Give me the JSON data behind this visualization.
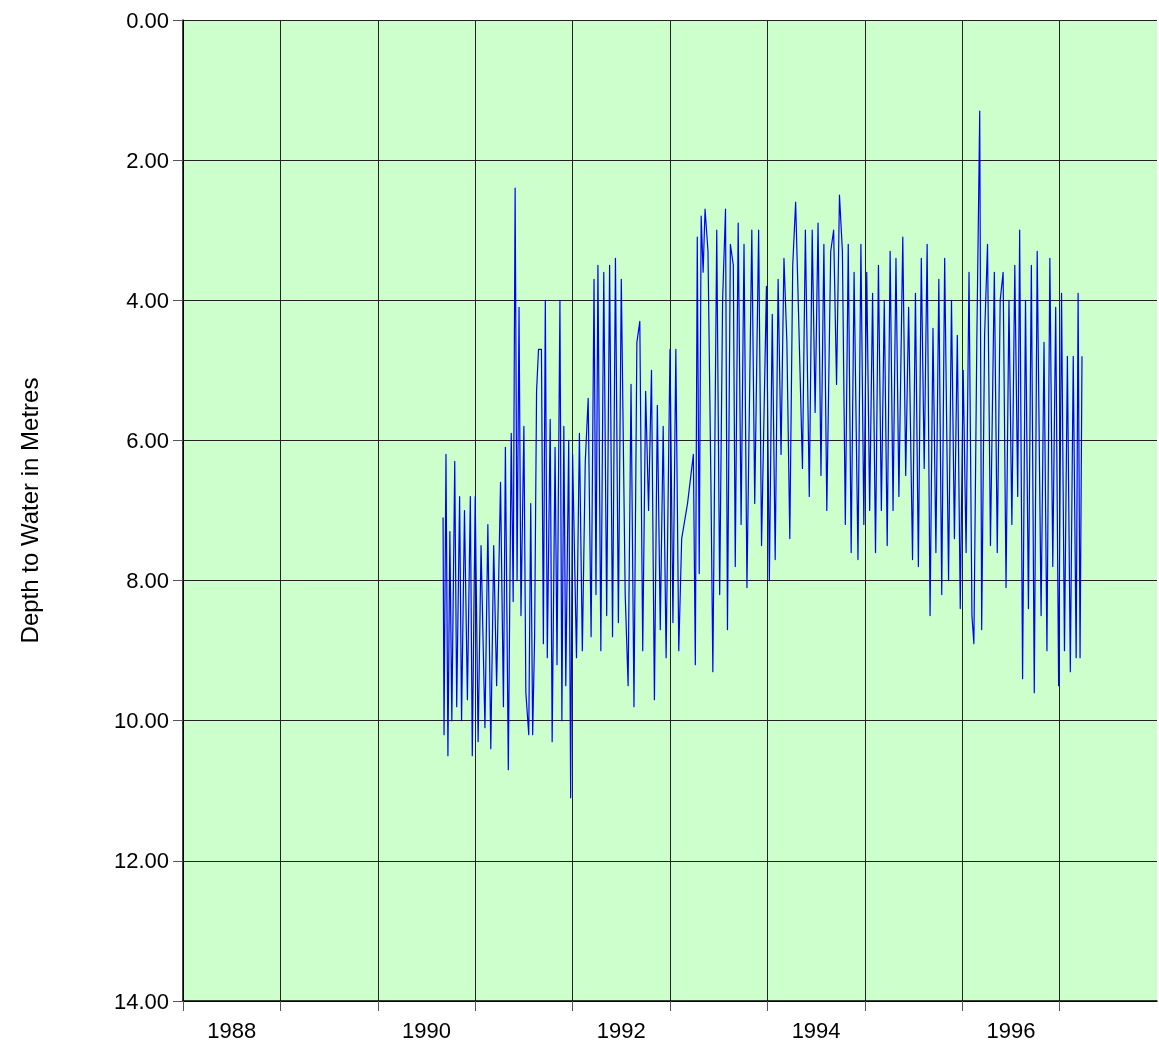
{
  "chart_data": {
    "type": "line",
    "ylabel": "Depth to Water in Metres",
    "xlim": [
      1988,
      1998
    ],
    "ylim": [
      14,
      0
    ],
    "xticks": [
      {
        "value": 1988,
        "label": null
      },
      {
        "value": 1989,
        "label": null
      },
      {
        "value": 1990,
        "label": null
      },
      {
        "value": 1991,
        "label": null
      },
      {
        "value": 1992,
        "label": null
      },
      {
        "value": 1993,
        "label": null
      },
      {
        "value": 1994,
        "label": null
      },
      {
        "value": 1995,
        "label": null
      },
      {
        "value": 1996,
        "label": null
      },
      {
        "value": 1997,
        "label": null
      },
      {
        "value": 1988.5,
        "label": "1988"
      },
      {
        "value": 1990.5,
        "label": "1990"
      },
      {
        "value": 1992.5,
        "label": "1992"
      },
      {
        "value": 1994.5,
        "label": "1994"
      },
      {
        "value": 1996.5,
        "label": "1996"
      }
    ],
    "yticks": [
      {
        "value": 0,
        "label": "0.00"
      },
      {
        "value": 2,
        "label": "2.00"
      },
      {
        "value": 4,
        "label": "4.00"
      },
      {
        "value": 6,
        "label": "6.00"
      },
      {
        "value": 8,
        "label": "8.00"
      },
      {
        "value": 10,
        "label": "10.00"
      },
      {
        "value": 12,
        "label": "12.00"
      },
      {
        "value": 14,
        "label": "14.00"
      }
    ],
    "grid": true,
    "series": [
      {
        "color": "#0000ff",
        "x": [
          1990.67,
          1990.68,
          1990.7,
          1990.72,
          1990.74,
          1990.76,
          1990.79,
          1990.81,
          1990.84,
          1990.86,
          1990.89,
          1990.92,
          1990.95,
          1990.97,
          1991.0,
          1991.03,
          1991.06,
          1991.1,
          1991.13,
          1991.16,
          1991.19,
          1991.22,
          1991.26,
          1991.29,
          1991.31,
          1991.34,
          1991.37,
          1991.39,
          1991.4,
          1991.41,
          1991.43,
          1991.45,
          1991.47,
          1991.5,
          1991.52,
          1991.55,
          1991.57,
          1991.59,
          1991.61,
          1991.63,
          1991.65,
          1991.68,
          1991.7,
          1991.72,
          1991.74,
          1991.77,
          1991.79,
          1991.82,
          1991.84,
          1991.87,
          1991.89,
          1991.91,
          1991.93,
          1991.96,
          1991.98,
          1992.0,
          1992.04,
          1992.07,
          1992.1,
          1992.13,
          1992.16,
          1992.19,
          1992.22,
          1992.24,
          1992.26,
          1992.29,
          1992.32,
          1992.35,
          1992.38,
          1992.41,
          1992.44,
          1992.47,
          1992.5,
          1992.54,
          1992.57,
          1992.6,
          1992.63,
          1992.66,
          1992.69,
          1992.72,
          1992.75,
          1992.78,
          1992.81,
          1992.84,
          1992.87,
          1992.9,
          1992.93,
          1992.96,
          1993.0,
          1993.03,
          1993.06,
          1993.09,
          1993.12,
          1993.18,
          1993.24,
          1993.26,
          1993.28,
          1993.3,
          1993.32,
          1993.34,
          1993.36,
          1993.39,
          1993.42,
          1993.44,
          1993.48,
          1993.51,
          1993.54,
          1993.57,
          1993.59,
          1993.62,
          1993.65,
          1993.67,
          1993.7,
          1993.73,
          1993.76,
          1993.79,
          1993.84,
          1993.87,
          1993.91,
          1993.94,
          1993.99,
          1994.02,
          1994.05,
          1994.08,
          1994.11,
          1994.14,
          1994.17,
          1994.2,
          1994.23,
          1994.26,
          1994.29,
          1994.32,
          1994.36,
          1994.39,
          1994.43,
          1994.46,
          1994.49,
          1994.52,
          1994.55,
          1994.58,
          1994.61,
          1994.65,
          1994.68,
          1994.71,
          1994.74,
          1994.77,
          1994.8,
          1994.83,
          1994.86,
          1994.89,
          1994.93,
          1994.96,
          1994.99,
          1995.02,
          1995.05,
          1995.08,
          1995.11,
          1995.14,
          1995.17,
          1995.2,
          1995.23,
          1995.26,
          1995.29,
          1995.32,
          1995.35,
          1995.39,
          1995.42,
          1995.45,
          1995.49,
          1995.52,
          1995.55,
          1995.58,
          1995.61,
          1995.64,
          1995.67,
          1995.7,
          1995.73,
          1995.76,
          1995.79,
          1995.82,
          1995.86,
          1995.89,
          1995.92,
          1995.95,
          1995.98,
          1996.01,
          1996.04,
          1996.07,
          1996.1,
          1996.12,
          1996.15,
          1996.18,
          1996.2,
          1996.23,
          1996.26,
          1996.29,
          1996.33,
          1996.36,
          1996.39,
          1996.42,
          1996.45,
          1996.48,
          1996.51,
          1996.54,
          1996.57,
          1996.59,
          1996.62,
          1996.65,
          1996.68,
          1996.71,
          1996.74,
          1996.77,
          1996.81,
          1996.84,
          1996.87,
          1996.9,
          1996.93,
          1996.96,
          1996.99,
          1997.02,
          1997.05,
          1997.08,
          1997.11,
          1997.14,
          1997.17,
          1997.19,
          1997.21,
          1997.23
        ],
        "values": [
          7.1,
          10.2,
          6.2,
          10.5,
          7.3,
          10.0,
          6.3,
          9.8,
          6.8,
          10.0,
          7.0,
          9.7,
          6.8,
          10.5,
          6.8,
          10.3,
          7.5,
          10.1,
          7.2,
          10.4,
          7.5,
          9.5,
          6.6,
          9.8,
          6.1,
          10.7,
          5.9,
          8.3,
          5.2,
          2.4,
          8.0,
          4.1,
          8.5,
          5.8,
          9.6,
          10.2,
          6.9,
          10.2,
          8.8,
          5.3,
          4.7,
          4.7,
          8.9,
          4.0,
          9.1,
          5.7,
          10.3,
          6.1,
          9.2,
          4.0,
          10.0,
          5.8,
          9.5,
          6.0,
          11.1,
          6.2,
          9.1,
          5.9,
          9.0,
          6.3,
          5.4,
          8.8,
          3.7,
          8.2,
          3.5,
          9.0,
          3.6,
          8.5,
          3.5,
          8.8,
          3.4,
          8.6,
          3.7,
          8.2,
          9.5,
          5.2,
          9.8,
          4.6,
          4.3,
          9.0,
          5.3,
          7.0,
          5.0,
          9.7,
          5.5,
          8.7,
          5.8,
          9.1,
          4.7,
          8.6,
          4.7,
          9.0,
          7.4,
          6.9,
          6.2,
          9.2,
          3.1,
          7.9,
          2.8,
          3.6,
          2.7,
          3.3,
          6.6,
          9.3,
          3.0,
          8.2,
          4.0,
          2.7,
          8.7,
          3.2,
          3.5,
          7.8,
          2.9,
          7.2,
          3.2,
          8.1,
          3.0,
          6.9,
          3.0,
          7.5,
          3.8,
          8.0,
          4.2,
          7.7,
          3.7,
          6.2,
          3.4,
          4.6,
          7.4,
          3.5,
          2.6,
          4.2,
          6.4,
          3.0,
          6.8,
          3.0,
          5.6,
          2.9,
          6.5,
          3.2,
          7.0,
          3.3,
          3.0,
          5.2,
          2.5,
          3.3,
          7.2,
          3.2,
          7.6,
          3.6,
          7.7,
          3.2,
          7.2,
          3.6,
          7.0,
          3.9,
          7.6,
          3.5,
          7.0,
          4.0,
          7.5,
          3.3,
          7.0,
          3.4,
          6.8,
          3.1,
          6.5,
          4.1,
          7.7,
          3.9,
          7.8,
          3.4,
          6.4,
          3.2,
          8.5,
          4.4,
          7.6,
          3.7,
          8.2,
          3.4,
          8.0,
          4.0,
          7.4,
          4.5,
          8.4,
          5.0,
          7.6,
          3.6,
          8.5,
          8.9,
          4.6,
          1.3,
          8.7,
          4.5,
          3.2,
          7.5,
          3.6,
          7.6,
          4.0,
          3.6,
          8.1,
          4.0,
          7.2,
          3.5,
          6.8,
          3.0,
          9.4,
          4.0,
          8.4,
          3.5,
          9.6,
          3.3,
          8.5,
          4.6,
          9.0,
          3.4,
          7.8,
          4.1,
          9.5,
          3.9,
          9.0,
          4.8,
          9.3,
          4.8,
          9.1,
          3.9,
          9.1,
          4.8
        ]
      }
    ]
  }
}
